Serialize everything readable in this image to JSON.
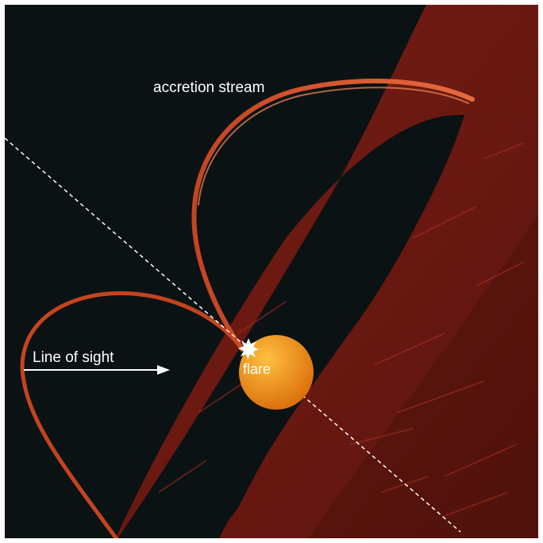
{
  "labels": {
    "accretion_stream": "accretion stream",
    "line_of_sight": "Line of sight",
    "flare": "flare"
  },
  "colors": {
    "background": "#0b1214",
    "frame": "#ffffff",
    "torus": "#6a1a12",
    "torus_dark": "#3e0e0a",
    "torus_streak": "#b83322",
    "stream": "#d8502a",
    "stream_dark": "#8e2a12",
    "star_light": "#ffc040",
    "star_dark": "#d86a08",
    "line_of_sight": "#ffffff",
    "flare": "#ffffff"
  }
}
